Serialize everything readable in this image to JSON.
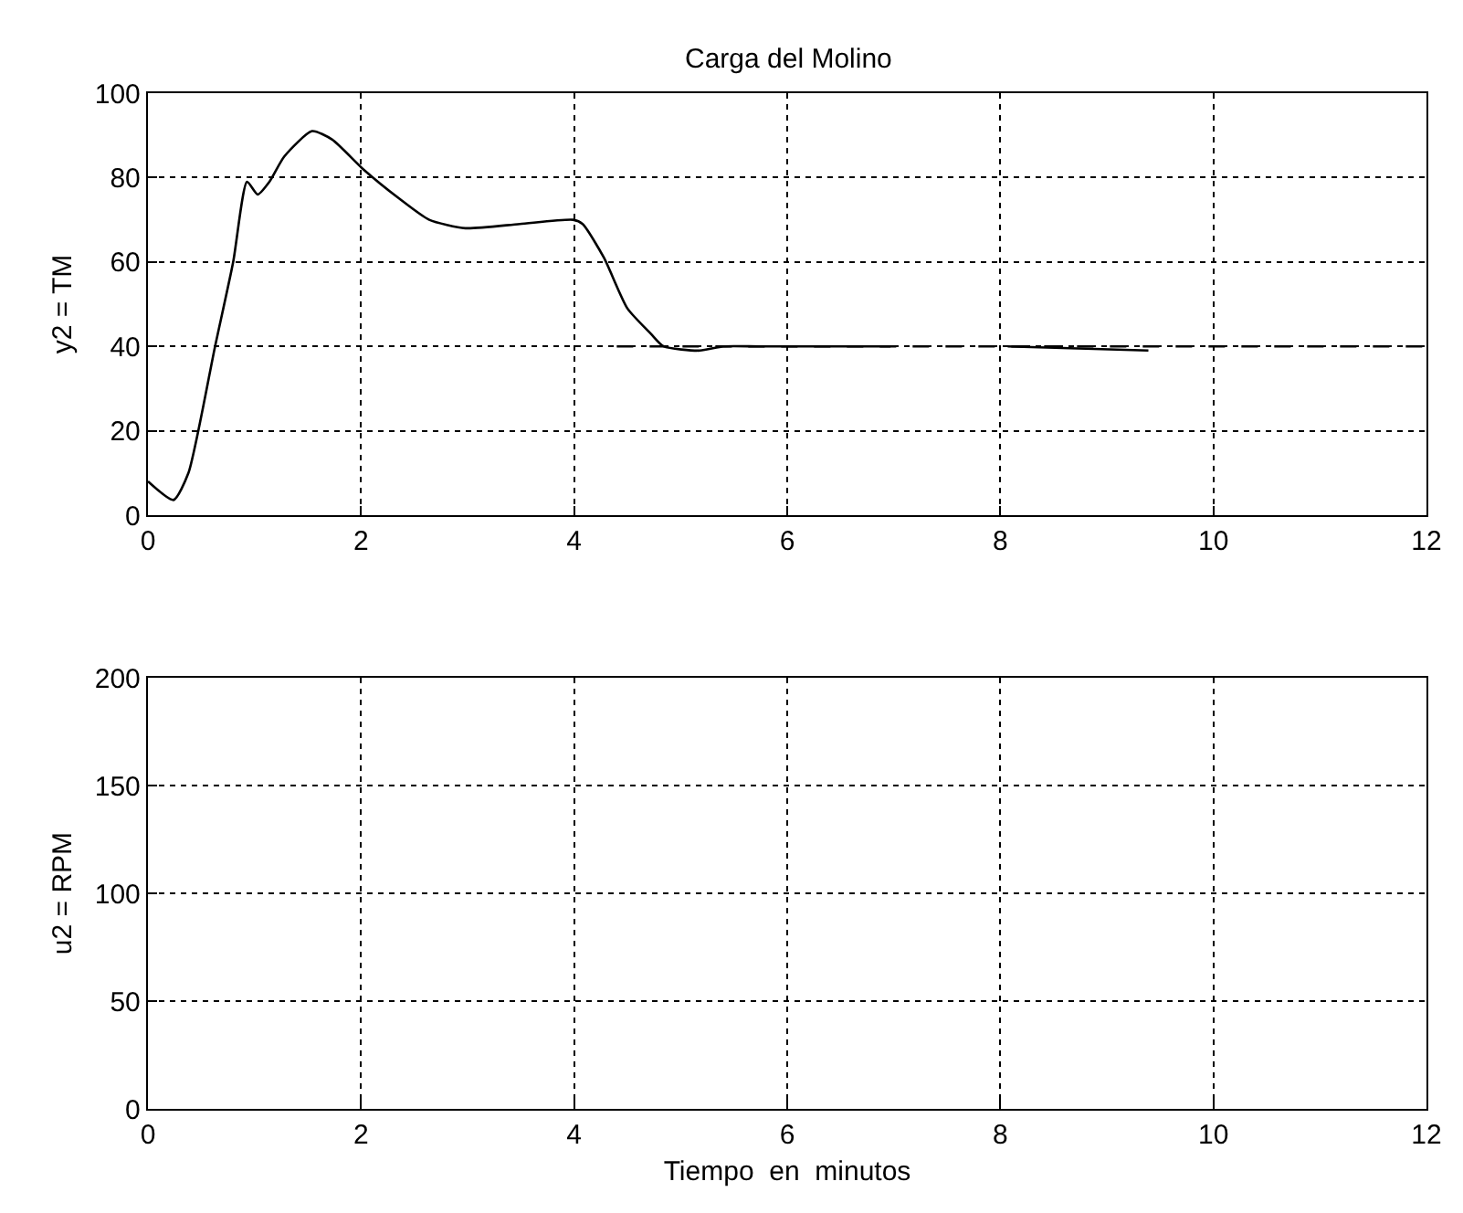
{
  "chart_data": [
    {
      "type": "line",
      "title": "Carga del Molino",
      "ylabel": "y2 = TM",
      "xlim": [
        0,
        12
      ],
      "xticks": [
        0,
        2,
        4,
        6,
        8,
        10,
        12
      ],
      "ylim": [
        0,
        100
      ],
      "yticks": [
        0,
        20,
        40,
        60,
        80,
        100
      ],
      "grid": true,
      "marker": "none",
      "series": [
        {
          "color": "#000000",
          "line_style": "solid",
          "x": [
            0,
            0.24,
            0.38,
            0.63,
            0.8,
            0.93,
            1.03,
            1.14,
            1.28,
            1.54,
            1.73,
            2.02,
            2.36,
            2.64,
            2.98,
            3.49,
            3.99,
            4.08,
            4.28,
            4.5,
            4.72,
            4.84,
            5.18,
            5.4,
            5.74,
            6.97,
            7.5,
            8.07,
            9.39
          ],
          "values": [
            8,
            3.6,
            10,
            40,
            60,
            79,
            76,
            79,
            85,
            91,
            89,
            82,
            75,
            70,
            68,
            69,
            70,
            69,
            61,
            49,
            43,
            40,
            39,
            40,
            40,
            40,
            null,
            40,
            39
          ]
        },
        {
          "color": "#000000",
          "line_style": "dashed",
          "x": [
            4.4,
            12
          ],
          "values": [
            40,
            40
          ]
        }
      ]
    },
    {
      "type": "line",
      "ylabel": "u2 = RPM",
      "xlabel": "Tiempo  en  minutos",
      "xlim": [
        0,
        12
      ],
      "xticks": [
        0,
        2,
        4,
        6,
        8,
        10,
        12
      ],
      "ylim": [
        0,
        200
      ],
      "yticks": [
        0,
        50,
        100,
        150,
        200
      ],
      "grid": true
    }
  ]
}
